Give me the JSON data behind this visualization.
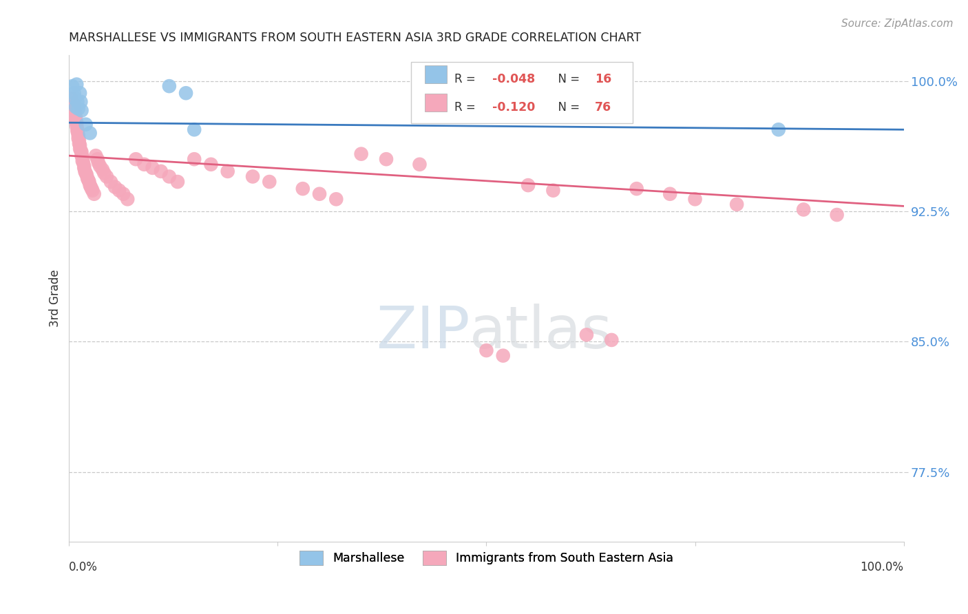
{
  "title": "MARSHALLESE VS IMMIGRANTS FROM SOUTH EASTERN ASIA 3RD GRADE CORRELATION CHART",
  "source": "Source: ZipAtlas.com",
  "ylabel": "3rd Grade",
  "xlim": [
    0,
    1
  ],
  "ylim": [
    0.735,
    1.015
  ],
  "yticks": [
    0.775,
    0.85,
    0.925,
    1.0
  ],
  "ytick_labels": [
    "77.5%",
    "85.0%",
    "92.5%",
    "100.0%"
  ],
  "legend_label1": "Marshallese",
  "legend_label2": "Immigrants from South Eastern Asia",
  "R1": -0.048,
  "N1": 16,
  "R2": -0.12,
  "N2": 76,
  "color_blue": "#94c4e8",
  "color_pink": "#f5a8bb",
  "color_trendline_blue": "#3a7abf",
  "color_trendline_pink": "#e06080",
  "blue_line_y0": 0.976,
  "blue_line_y1": 0.972,
  "pink_line_y0": 0.957,
  "pink_line_y1": 0.928,
  "blue_x": [
    0.004,
    0.006,
    0.007,
    0.008,
    0.009,
    0.01,
    0.011,
    0.013,
    0.014,
    0.015,
    0.02,
    0.025,
    0.12,
    0.14,
    0.15,
    0.85
  ],
  "blue_y": [
    0.997,
    0.993,
    0.99,
    0.985,
    0.998,
    0.988,
    0.984,
    0.993,
    0.988,
    0.983,
    0.975,
    0.97,
    0.997,
    0.993,
    0.972,
    0.972
  ],
  "pink_x": [
    0.003,
    0.005,
    0.006,
    0.007,
    0.008,
    0.008,
    0.009,
    0.009,
    0.01,
    0.01,
    0.011,
    0.011,
    0.012,
    0.012,
    0.013,
    0.013,
    0.014,
    0.015,
    0.015,
    0.016,
    0.016,
    0.017,
    0.018,
    0.018,
    0.019,
    0.02,
    0.021,
    0.022,
    0.023,
    0.024,
    0.025,
    0.026,
    0.027,
    0.028,
    0.03,
    0.032,
    0.034,
    0.035,
    0.037,
    0.04,
    0.042,
    0.045,
    0.05,
    0.055,
    0.06,
    0.065,
    0.07,
    0.08,
    0.09,
    0.1,
    0.11,
    0.12,
    0.13,
    0.15,
    0.17,
    0.19,
    0.22,
    0.24,
    0.28,
    0.3,
    0.32,
    0.35,
    0.38,
    0.42,
    0.5,
    0.52,
    0.55,
    0.58,
    0.62,
    0.65,
    0.68,
    0.72,
    0.75,
    0.8,
    0.88,
    0.92
  ],
  "pink_y": [
    0.99,
    0.987,
    0.984,
    0.982,
    0.979,
    0.977,
    0.976,
    0.974,
    0.972,
    0.971,
    0.969,
    0.967,
    0.966,
    0.964,
    0.963,
    0.961,
    0.96,
    0.959,
    0.957,
    0.956,
    0.954,
    0.953,
    0.951,
    0.95,
    0.948,
    0.947,
    0.946,
    0.944,
    0.943,
    0.942,
    0.94,
    0.939,
    0.938,
    0.937,
    0.935,
    0.957,
    0.955,
    0.953,
    0.951,
    0.949,
    0.947,
    0.945,
    0.942,
    0.939,
    0.937,
    0.935,
    0.932,
    0.955,
    0.952,
    0.95,
    0.948,
    0.945,
    0.942,
    0.955,
    0.952,
    0.948,
    0.945,
    0.942,
    0.938,
    0.935,
    0.932,
    0.958,
    0.955,
    0.952,
    0.845,
    0.842,
    0.94,
    0.937,
    0.854,
    0.851,
    0.938,
    0.935,
    0.932,
    0.929,
    0.926,
    0.923
  ]
}
